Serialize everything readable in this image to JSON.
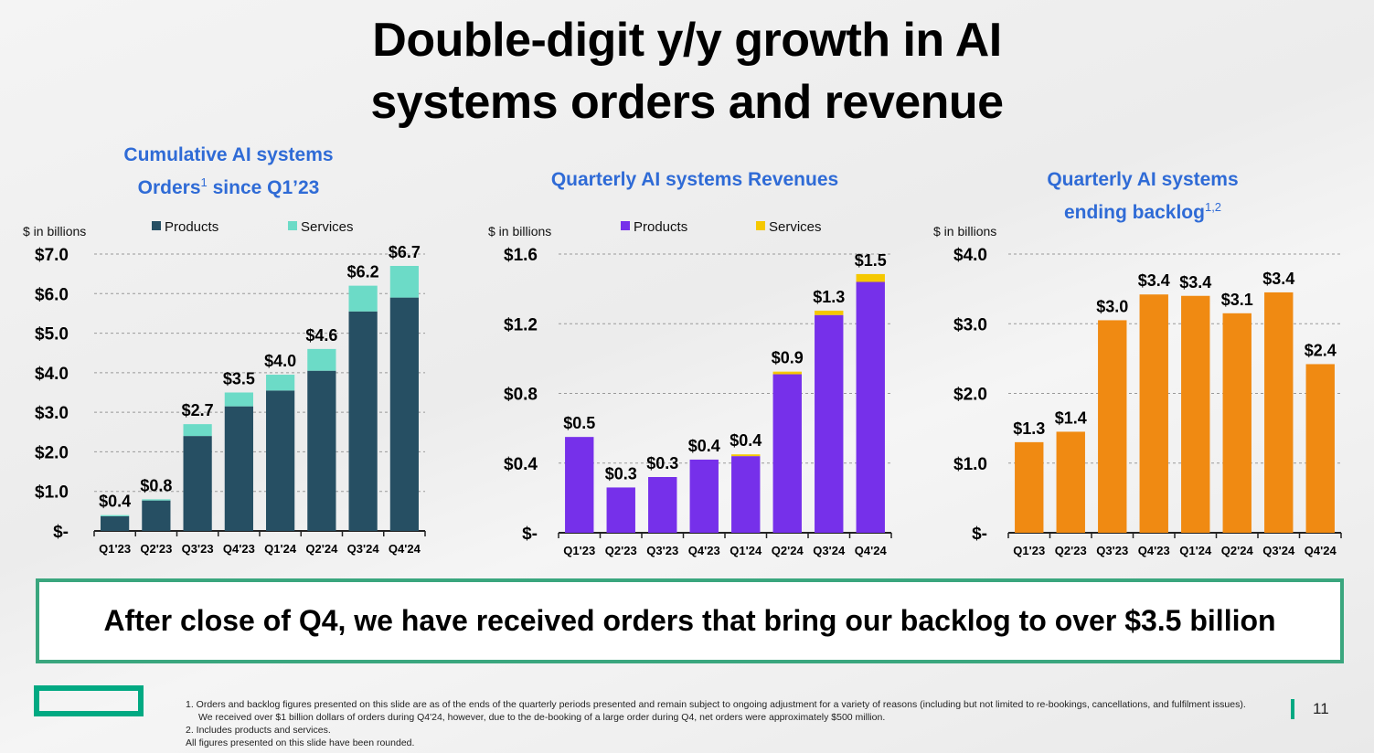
{
  "title_line1": "Double-digit y/y growth in AI",
  "title_line2": "systems orders and revenue",
  "chart_data": [
    {
      "type": "bar",
      "stacked": true,
      "title_line1": "Cumulative AI systems",
      "title_line2": "Orders",
      "title_sup": "1",
      "title_suffix": " since Q1’23",
      "unit_label": "$ in billions",
      "categories": [
        "Q1'23",
        "Q2'23",
        "Q3'23",
        "Q4'23",
        "Q1'24",
        "Q2'24",
        "Q3'24",
        "Q4'24"
      ],
      "ylim": [
        0,
        7
      ],
      "yticks": [
        0,
        1,
        2,
        3,
        4,
        5,
        6,
        7
      ],
      "ytick_labels": [
        "$-",
        "$1.0",
        "$2.0",
        "$3.0",
        "$4.0",
        "$5.0",
        "$6.0",
        "$7.0"
      ],
      "legend": [
        "Products",
        "Services"
      ],
      "colors": [
        "#264f63",
        "#6cdbc7"
      ],
      "series": [
        {
          "name": "Products",
          "values": [
            0.37,
            0.77,
            2.4,
            3.15,
            3.55,
            4.05,
            5.55,
            5.9
          ]
        },
        {
          "name": "Services",
          "values": [
            0.03,
            0.03,
            0.3,
            0.35,
            0.4,
            0.55,
            0.65,
            0.8
          ]
        }
      ],
      "data_labels": [
        "$0.4",
        "$0.8",
        "$2.7",
        "$3.5",
        "$4.0",
        "$4.6",
        "$6.2",
        "$6.7"
      ]
    },
    {
      "type": "bar",
      "stacked": true,
      "title_line1": "Quarterly AI systems Revenues",
      "title_line2": "",
      "title_sup": "",
      "title_suffix": "",
      "unit_label": "$ in billions",
      "categories": [
        "Q1'23",
        "Q2'23",
        "Q3'23",
        "Q4'23",
        "Q1'24",
        "Q2'24",
        "Q3'24",
        "Q4'24"
      ],
      "ylim": [
        0,
        1.6
      ],
      "yticks": [
        0,
        0.4,
        0.8,
        1.2,
        1.6
      ],
      "ytick_labels": [
        "$-",
        "$0.4",
        "$0.8",
        "$1.2",
        "$1.6"
      ],
      "legend": [
        "Products",
        "Services"
      ],
      "colors": [
        "#7630ea",
        "#f5c800"
      ],
      "series": [
        {
          "name": "Products",
          "values": [
            0.55,
            0.26,
            0.32,
            0.42,
            0.44,
            0.91,
            1.25,
            1.44
          ]
        },
        {
          "name": "Services",
          "values": [
            0,
            0,
            0,
            0,
            0.01,
            0.015,
            0.025,
            0.045
          ]
        }
      ],
      "data_labels": [
        "$0.5",
        "$0.3",
        "$0.3",
        "$0.4",
        "$0.4",
        "$0.9",
        "$1.3",
        "$1.5"
      ]
    },
    {
      "type": "bar",
      "stacked": false,
      "title_line1": "Quarterly AI systems",
      "title_line2": "ending backlog",
      "title_sup": "1,2",
      "title_suffix": "",
      "unit_label": "$ in billions",
      "categories": [
        "Q1'23",
        "Q2'23",
        "Q3'23",
        "Q4'23",
        "Q1'24",
        "Q2'24",
        "Q3'24",
        "Q4'24"
      ],
      "ylim": [
        0,
        4
      ],
      "yticks": [
        0,
        1,
        2,
        3,
        4
      ],
      "ytick_labels": [
        "$-",
        "$1.0",
        "$2.0",
        "$3.0",
        "$4.0"
      ],
      "legend": [],
      "colors": [
        "#f08a12"
      ],
      "series": [
        {
          "name": "Backlog",
          "values": [
            1.3,
            1.45,
            3.05,
            3.42,
            3.4,
            3.15,
            3.45,
            2.42
          ]
        }
      ],
      "data_labels": [
        "$1.3",
        "$1.4",
        "$3.0",
        "$3.4",
        "$3.4",
        "$3.1",
        "$3.4",
        "$2.4"
      ]
    }
  ],
  "callout": "After close of Q4, we have received orders that bring our backlog to over $3.5 billion",
  "footnotes": [
    "1. Orders and backlog figures presented on this slide are as of the ends of the quarterly periods presented and remain subject to ongoing adjustment for a variety of reasons (including but not limited to re-bookings, cancellations, and fulfilment issues).  We received over $1 billion dollars of orders during Q4'24, however, due to the de-booking of a large order during Q4, net orders were approximately $500 million.",
    "2. Includes products and services.",
    "All figures presented on this slide have been rounded."
  ],
  "page_number": "11"
}
